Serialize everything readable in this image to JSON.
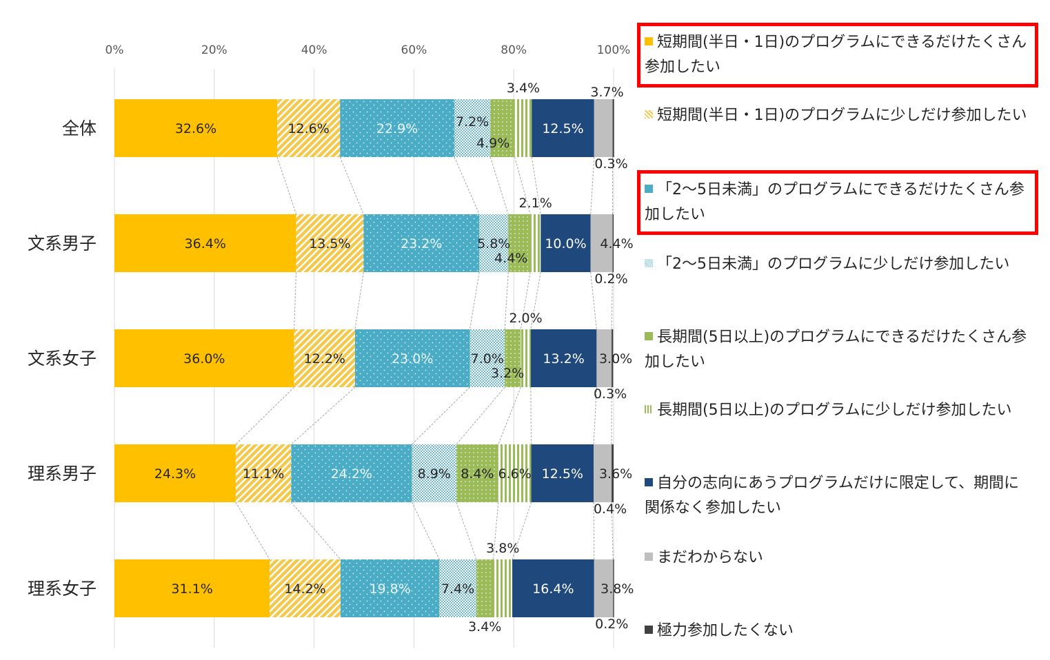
{
  "chart_data": {
    "type": "bar",
    "orientation": "horizontal-stacked-100",
    "categories": [
      "全体",
      "文系男子",
      "文系女子",
      "理系男子",
      "理系女子"
    ],
    "x_ticks": [
      "0%",
      "20%",
      "40%",
      "60%",
      "80%",
      "100%"
    ],
    "xlim": [
      0,
      100
    ],
    "legend_placement": "right",
    "series": [
      {
        "name": "短期間(半日・1日)のプログラムにできるだけたくさん参加したい",
        "color": "#FFC000",
        "pattern": "solid",
        "highlighted": true,
        "values": [
          32.6,
          36.4,
          36.0,
          24.3,
          31.1
        ],
        "labels": [
          "32.6%",
          "36.4%",
          "36.0%",
          "24.3%",
          "31.1%"
        ]
      },
      {
        "name": "短期間(半日・1日)のプログラムに少しだけ参加したい",
        "color": "#F4C542",
        "pattern": "diagonal",
        "highlighted": false,
        "values": [
          12.6,
          13.5,
          12.2,
          11.1,
          14.2
        ],
        "labels": [
          "12.6%",
          "13.5%",
          "12.2%",
          "11.1%",
          "14.2%"
        ]
      },
      {
        "name": "「2～5日未満」のプログラムにできるだけたくさん参加したい",
        "color": "#4BACC6",
        "pattern": "dots",
        "highlighted": true,
        "values": [
          22.9,
          23.2,
          23.0,
          24.2,
          19.8
        ],
        "labels": [
          "22.9%",
          "23.2%",
          "23.0%",
          "24.2%",
          "19.8%"
        ]
      },
      {
        "name": "「2～5日未満」のプログラムに少しだけ参加したい",
        "color": "#93CDDD",
        "pattern": "checker",
        "highlighted": false,
        "values": [
          7.2,
          5.8,
          7.0,
          8.9,
          7.4
        ],
        "labels": [
          "7.2%",
          "5.8%",
          "7.0%",
          "8.9%",
          "7.4%"
        ]
      },
      {
        "name": "長期間(5日以上)のプログラムにできるだけたくさん参加したい",
        "color": "#9BBB59",
        "pattern": "grid",
        "highlighted": false,
        "values": [
          4.9,
          4.4,
          3.2,
          8.4,
          3.4
        ],
        "labels": [
          "4.9%",
          "4.4%",
          "3.2%",
          "8.4%",
          "3.4%"
        ]
      },
      {
        "name": "長期間(5日以上)のプログラムに少しだけ参加したい",
        "color": "#9BBB59",
        "pattern": "vertical",
        "highlighted": false,
        "values": [
          3.4,
          2.1,
          2.0,
          6.6,
          3.8
        ],
        "labels": [
          "3.4%",
          "2.1%",
          "2.0%",
          "6.6%",
          "3.8%"
        ]
      },
      {
        "name": "自分の志向にあうプログラムだけに限定して、期間に関係なく参加したい",
        "color": "#1F497D",
        "pattern": "solid",
        "highlighted": false,
        "values": [
          12.5,
          10.0,
          13.2,
          12.5,
          16.4
        ],
        "labels": [
          "12.5%",
          "10.0%",
          "13.2%",
          "12.5%",
          "16.4%"
        ]
      },
      {
        "name": "まだわからない",
        "color": "#BFBFBF",
        "pattern": "solid",
        "highlighted": false,
        "values": [
          3.7,
          4.4,
          3.0,
          3.6,
          3.8
        ],
        "labels": [
          "3.7%",
          "4.4%",
          "3.0%",
          "3.6%",
          "3.8%"
        ]
      },
      {
        "name": "極力参加したくない",
        "color": "#404040",
        "pattern": "solid",
        "highlighted": false,
        "values": [
          0.3,
          0.2,
          0.3,
          0.4,
          0.2
        ],
        "labels": [
          "0.3%",
          "0.2%",
          "0.3%",
          "0.4%",
          "0.2%"
        ]
      }
    ]
  }
}
